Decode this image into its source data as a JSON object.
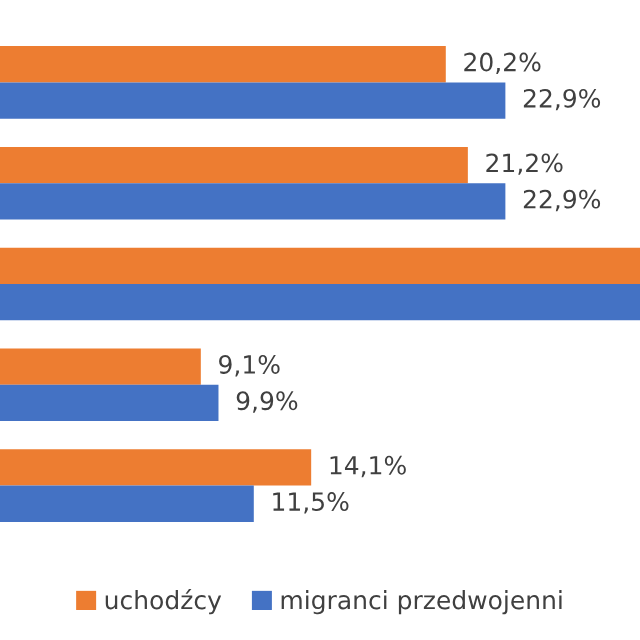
{
  "chart_data": {
    "type": "bar",
    "orientation": "horizontal",
    "categories": [
      null,
      null,
      null,
      null,
      null
    ],
    "series": [
      {
        "name": "uchodźcy",
        "color": "#ed7d31",
        "values": [
          20.2,
          21.2,
          29,
          9.1,
          14.1
        ],
        "value_labels": [
          "20,2%",
          "21,2%",
          null,
          "9,1%",
          "14,1%"
        ]
      },
      {
        "name": "migranci przedwojenni",
        "color": "#4472c4",
        "values": [
          22.9,
          22.9,
          29,
          9.9,
          11.5
        ],
        "value_labels": [
          "22,9%",
          "22,9%",
          null,
          "9,9%",
          "11,5%"
        ]
      }
    ],
    "xlim": [
      0,
      29
    ],
    "tick_labels": false,
    "grid": false,
    "legend": "bottom"
  }
}
